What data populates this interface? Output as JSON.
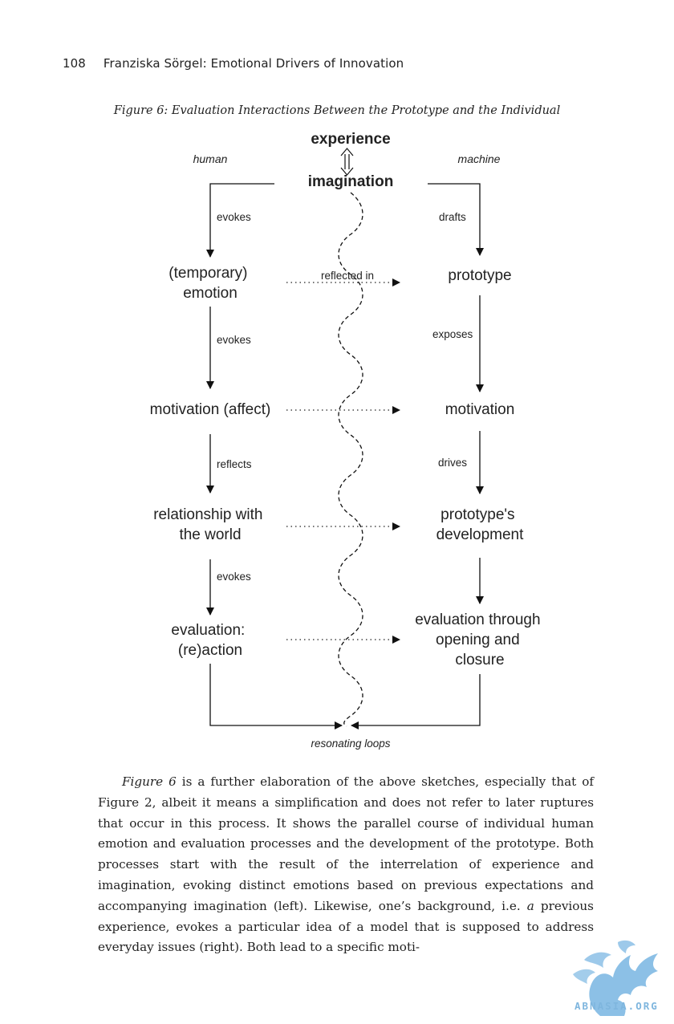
{
  "header": {
    "page_number": "108",
    "running_title": "Franziska Sörgel: Emotional Drivers of Innovation"
  },
  "figure": {
    "caption": "Figure 6: Evaluation Interactions Between the Prototype and the Individual",
    "top_labels": {
      "experience": "experience",
      "imagination": "imagination",
      "human": "human",
      "machine": "machine"
    },
    "left_nodes": [
      {
        "line1": "(temporary)",
        "line2": "emotion"
      },
      {
        "line1": "motivation (affect)",
        "line2": ""
      },
      {
        "line1": "relationship with",
        "line2": "the world"
      },
      {
        "line1": "evaluation:",
        "line2": "(re)action"
      }
    ],
    "left_edges": [
      "evokes",
      "evokes",
      "reflects",
      "evokes"
    ],
    "right_nodes": [
      {
        "line1": "prototype",
        "line2": "",
        "line3": ""
      },
      {
        "line1": "motivation",
        "line2": "",
        "line3": ""
      },
      {
        "line1": "prototype's",
        "line2": "development",
        "line3": ""
      },
      {
        "line1": "evaluation through",
        "line2": "opening and",
        "line3": "closure"
      }
    ],
    "right_edges": [
      "drafts",
      "exposes",
      "drives",
      ""
    ],
    "cross_label": "reflected in",
    "bottom_label": "resonating loops"
  },
  "body": {
    "figure_ref": "Figure 6",
    "paragraph_rest": " is a further elaboration of the above sketches, especially that of Figure 2, albeit it means a simplification and does not refer to later ruptures that occur in this process. It shows the parallel course of individual human emotion and evaluation processes and the development of the prototype. Both processes start with the result of the interrelation of experience and imagination, evoking distinct emotions based on previous expectations and accompanying imagination (left). Likewise, one’s background, i.e. ",
    "emphasis_a": "a",
    "paragraph_end": " previous experience, evokes a particular idea of a model that is supposed to address everyday issues (right). Both lead to a specific moti-"
  },
  "watermark": {
    "text": "ABNASIA.ORG"
  },
  "colors": {
    "text": "#222222",
    "line": "#111111",
    "watermark": "#7fb6de"
  }
}
